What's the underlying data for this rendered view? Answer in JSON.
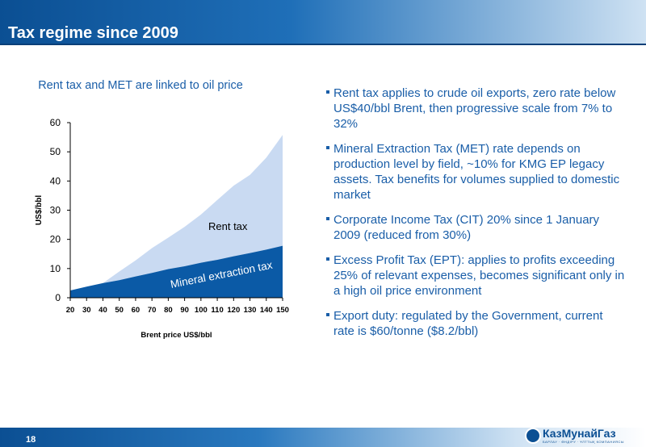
{
  "slide": {
    "title": "Tax regime since 2009",
    "page_number": "18",
    "logo_text": "КазМунайГаз",
    "logo_subtext": "БАРЛАУ · ӨНДІРУ · ҰЛТТЫҚ КОМПАНИЯСЫ"
  },
  "chart_title": "Rent tax and MET are linked to oil price",
  "chart_data": {
    "type": "area",
    "xlabel": "Brent price US$/bbl",
    "ylabel": "US$/bbl",
    "x": [
      20,
      30,
      40,
      50,
      60,
      70,
      80,
      90,
      100,
      110,
      120,
      130,
      140,
      150
    ],
    "x_tick_labels": [
      "20",
      "30",
      "40",
      "50",
      "60",
      "70",
      "80",
      "90",
      "100",
      "110",
      "120",
      "130",
      "140",
      "150"
    ],
    "y_ticks": [
      0,
      10,
      20,
      30,
      40,
      50,
      60
    ],
    "ylim": [
      0,
      60
    ],
    "series": [
      {
        "name": "Mineral extraction tax",
        "values": [
          2.5,
          3.8,
          5.0,
          6.0,
          7.3,
          8.5,
          9.8,
          10.8,
          12.0,
          13.0,
          14.2,
          15.3,
          16.5,
          17.8
        ],
        "color": "#0b5aa6"
      },
      {
        "name": "Rent tax",
        "values": [
          0,
          0,
          0,
          3.0,
          5.5,
          8.5,
          10.8,
          13.5,
          16.5,
          20.5,
          24.2,
          26.8,
          31.5,
          38.0
        ],
        "color": "#c9daf2"
      }
    ]
  },
  "bullets": [
    {
      "text": "Rent tax applies to crude oil exports, zero rate below US$40/bbl Brent, then progressive scale from 7% to 32%"
    },
    {
      "text": "Mineral Extraction Tax (MET) rate depends on production level by field, ~10% for KMG EP legacy assets. Tax benefits for volumes supplied to domestic market"
    },
    {
      "text": "Corporate Income Tax (CIT) 20% since 1 January 2009 (reduced from 30%)"
    },
    {
      "text": "Excess Profit Tax (EPT): applies to profits exceeding 25% of relevant expenses, becomes significant only in a high oil price environment"
    },
    {
      "text": "Export duty: regulated by the Government, current rate is $60/tonne ($8.2/bbl)"
    }
  ]
}
